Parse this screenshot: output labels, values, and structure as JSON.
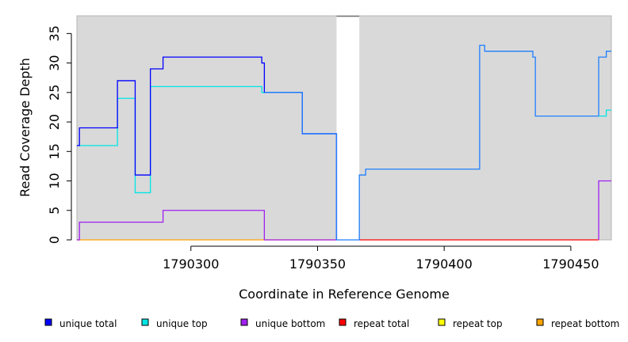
{
  "chart_data": {
    "type": "line",
    "xlabel": "Coordinate in Reference Genome",
    "ylabel": "Read Coverage Depth",
    "xlim": [
      1790255,
      1790466
    ],
    "ylim": [
      0,
      38
    ],
    "x_ticks": [
      1790300,
      1790350,
      1790400,
      1790450
    ],
    "y_ticks": [
      0,
      5,
      10,
      15,
      20,
      25,
      30,
      35
    ],
    "background_color": "#d9d9d9",
    "gap": [
      1790357.5,
      1790366.5
    ],
    "legend_position": "bottom",
    "series": [
      {
        "name": "unique total",
        "color": "#0000ff",
        "points": [
          [
            1790255,
            16
          ],
          [
            1790256,
            16
          ],
          [
            1790256,
            19
          ],
          [
            1790271,
            19
          ],
          [
            1790271,
            27
          ],
          [
            1790278,
            27
          ],
          [
            1790278,
            11
          ],
          [
            1790284,
            11
          ],
          [
            1790284,
            29
          ],
          [
            1790289,
            29
          ],
          [
            1790289,
            31
          ],
          [
            1790328,
            31
          ],
          [
            1790328,
            30
          ],
          [
            1790329,
            30
          ],
          [
            1790329,
            25
          ],
          [
            1790344,
            25
          ],
          [
            1790344,
            18
          ],
          [
            1790357.5,
            18
          ],
          [
            1790357.5,
            0
          ]
        ]
      },
      {
        "name": "unique top",
        "color": "#00e5e5",
        "points": [
          [
            1790255,
            16
          ],
          [
            1790271,
            16
          ],
          [
            1790271,
            24
          ],
          [
            1790278,
            24
          ],
          [
            1790278,
            8
          ],
          [
            1790284,
            8
          ],
          [
            1790284,
            26
          ],
          [
            1790328,
            26
          ],
          [
            1790328,
            25
          ],
          [
            1790344,
            25
          ]
        ]
      },
      {
        "name": "unique bottom",
        "color": "#a020f0",
        "points": [
          [
            1790255,
            0
          ],
          [
            1790256,
            0
          ],
          [
            1790256,
            3
          ],
          [
            1790289,
            3
          ],
          [
            1790289,
            5
          ],
          [
            1790329,
            5
          ],
          [
            1790329,
            0
          ],
          [
            1790357.5,
            0
          ]
        ]
      },
      {
        "name": "repeat total",
        "color": "#ff0000",
        "points": [
          [
            1790366.5,
            0
          ],
          [
            1790461,
            0
          ]
        ]
      },
      {
        "name": "repeat top",
        "color": "#ffff00",
        "points": []
      },
      {
        "name": "repeat bottom",
        "color": "#ffa500",
        "points": [
          [
            1790255,
            0
          ],
          [
            1790357.5,
            0
          ]
        ]
      }
    ],
    "blended_series": [
      {
        "color": "#1e7fff",
        "points": [
          [
            1790329,
            25
          ],
          [
            1790344,
            25
          ],
          [
            1790344,
            18
          ],
          [
            1790357.5,
            18
          ],
          [
            1790357.5,
            0
          ],
          [
            1790366.5,
            0
          ],
          [
            1790366.5,
            11
          ],
          [
            1790369,
            11
          ],
          [
            1790369,
            12
          ],
          [
            1790414,
            12
          ],
          [
            1790414,
            33
          ],
          [
            1790416,
            33
          ],
          [
            1790416,
            32
          ],
          [
            1790435,
            32
          ],
          [
            1790435,
            31
          ],
          [
            1790436,
            31
          ],
          [
            1790436,
            21
          ],
          [
            1790461,
            21
          ],
          [
            1790461,
            31
          ],
          [
            1790464,
            31
          ],
          [
            1790464,
            32
          ],
          [
            1790466,
            32
          ]
        ]
      },
      {
        "color": "#00e5e5",
        "points": [
          [
            1790461,
            21
          ],
          [
            1790464,
            21
          ],
          [
            1790464,
            22
          ],
          [
            1790466,
            22
          ]
        ]
      },
      {
        "color": "#a020f0",
        "points": [
          [
            1790461,
            0
          ],
          [
            1790461,
            10
          ],
          [
            1790466,
            10
          ]
        ]
      }
    ]
  }
}
